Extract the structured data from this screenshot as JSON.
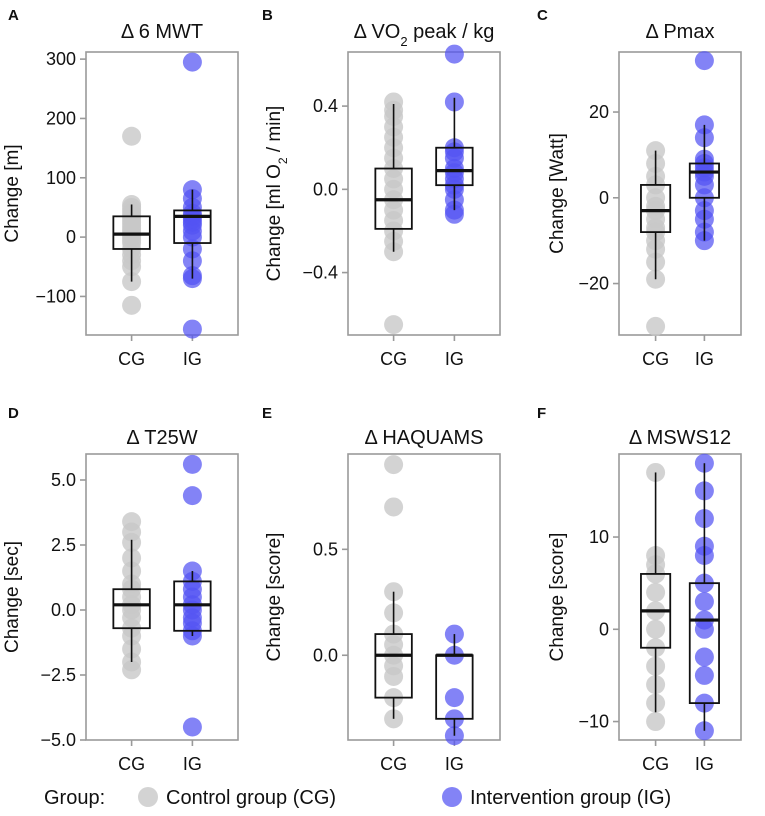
{
  "colors": {
    "control": "#c8c8c8",
    "intervention": "#5353f2",
    "frame": "#9a9a9a",
    "box": "#111111"
  },
  "legend": {
    "title": "Group:",
    "entries": [
      {
        "key": "CG",
        "label": "Control group (CG)"
      },
      {
        "key": "IG",
        "label": "Intervention group (IG)"
      }
    ]
  },
  "chart_data": [
    {
      "type": "box",
      "panel": "A",
      "title": "Δ 6 MWT",
      "ylabel": "Change [m]",
      "ylim": [
        -165,
        312
      ],
      "yticks": [
        -100,
        0,
        100,
        200,
        300
      ],
      "yticklabels": [
        "−100",
        "0",
        "100",
        "200",
        "300"
      ],
      "categories": [
        "CG",
        "IG"
      ],
      "boxes": {
        "CG": {
          "min": -75,
          "q1": -20,
          "median": 5,
          "q3": 35,
          "max": 55
        },
        "IG": {
          "min": -70,
          "q1": -10,
          "median": 35,
          "q3": 45,
          "max": 80
        }
      },
      "points": {
        "CG": [
          170,
          55,
          50,
          45,
          40,
          35,
          30,
          25,
          20,
          15,
          10,
          5,
          0,
          -5,
          -10,
          -20,
          -30,
          -40,
          -50,
          -75,
          -115
        ],
        "IG": [
          295,
          80,
          65,
          50,
          40,
          35,
          30,
          25,
          20,
          10,
          0,
          -20,
          -40,
          -65,
          -70,
          -155
        ]
      }
    },
    {
      "type": "box",
      "panel": "B",
      "title": "Δ VO₂ peak / kg",
      "ylabel": "Change [ml O₂ / min]",
      "ylim": [
        -0.7,
        0.66
      ],
      "yticks": [
        -0.4,
        0.0,
        0.4
      ],
      "yticklabels": [
        "−0.4",
        "0.0",
        "0.4"
      ],
      "categories": [
        "CG",
        "IG"
      ],
      "boxes": {
        "CG": {
          "min": -0.3,
          "q1": -0.19,
          "median": -0.05,
          "q3": 0.1,
          "max": 0.41
        },
        "IG": {
          "min": -0.1,
          "q1": 0.02,
          "median": 0.09,
          "q3": 0.2,
          "max": 0.44
        }
      },
      "points": {
        "CG": [
          0.42,
          0.38,
          0.35,
          0.3,
          0.25,
          0.2,
          0.15,
          0.1,
          0.05,
          0.0,
          -0.05,
          -0.1,
          -0.15,
          -0.2,
          -0.25,
          -0.3,
          -0.65
        ],
        "IG": [
          0.65,
          0.42,
          0.2,
          0.18,
          0.15,
          0.1,
          0.08,
          0.05,
          0.02,
          0.0,
          -0.05,
          -0.1,
          -0.12
        ]
      }
    },
    {
      "type": "box",
      "panel": "C",
      "title": "Δ Pmax",
      "ylabel": "Change [Watt]",
      "ylim": [
        -32,
        34
      ],
      "yticks": [
        -20,
        0,
        20
      ],
      "yticklabels": [
        "−20",
        "0",
        "20"
      ],
      "categories": [
        "CG",
        "IG"
      ],
      "boxes": {
        "CG": {
          "min": -19,
          "q1": -8,
          "median": -3,
          "q3": 3,
          "max": 11
        },
        "IG": {
          "min": -10,
          "q1": 0,
          "median": 6,
          "q3": 8,
          "max": 17
        }
      },
      "points": {
        "CG": [
          11,
          8,
          5,
          3,
          0,
          -2,
          -3,
          -5,
          -7,
          -8,
          -10,
          -12,
          -15,
          -19,
          -30
        ],
        "IG": [
          32,
          17,
          14,
          9,
          8,
          7,
          6,
          5,
          3,
          0,
          -3,
          -5,
          -8,
          -10
        ]
      }
    },
    {
      "type": "box",
      "panel": "D",
      "title": "Δ T25W",
      "ylabel": "Change [sec]",
      "ylim": [
        -5.0,
        6.0
      ],
      "yticks": [
        -5.0,
        -2.5,
        0.0,
        2.5,
        5.0
      ],
      "yticklabels": [
        "−5.0",
        "−2.5",
        "0.0",
        "2.5",
        "5.0"
      ],
      "categories": [
        "CG",
        "IG"
      ],
      "boxes": {
        "CG": {
          "min": -2.0,
          "q1": -0.7,
          "median": 0.2,
          "q3": 0.8,
          "max": 2.7
        },
        "IG": {
          "min": -1.0,
          "q1": -0.8,
          "median": 0.2,
          "q3": 1.1,
          "max": 1.5
        }
      },
      "points": {
        "CG": [
          3.4,
          3.0,
          2.6,
          2.0,
          1.5,
          1.0,
          0.8,
          0.5,
          0.2,
          0.0,
          -0.3,
          -0.7,
          -1.0,
          -1.5,
          -2.0,
          -2.3
        ],
        "IG": [
          5.6,
          4.4,
          1.5,
          1.1,
          0.8,
          0.5,
          0.2,
          0.0,
          -0.3,
          -0.5,
          -0.8,
          -1.0,
          -4.5
        ]
      }
    },
    {
      "type": "box",
      "panel": "E",
      "title": "Δ HAQUAMS",
      "ylabel": "Change [score]",
      "ylim": [
        -0.4,
        0.95
      ],
      "yticks": [
        0.0,
        0.5
      ],
      "yticklabels": [
        "0.0",
        "0.5"
      ],
      "categories": [
        "CG",
        "IG"
      ],
      "boxes": {
        "CG": {
          "min": -0.3,
          "q1": -0.2,
          "median": 0.0,
          "q3": 0.1,
          "max": 0.3
        },
        "IG": {
          "min": -0.38,
          "q1": -0.3,
          "median": 0.0,
          "q3": 0.0,
          "max": 0.1
        }
      },
      "points": {
        "CG": [
          0.9,
          0.7,
          0.3,
          0.2,
          0.1,
          0.05,
          0.0,
          -0.05,
          -0.1,
          -0.2,
          -0.3
        ],
        "IG": [
          0.1,
          0.0,
          -0.2,
          -0.3,
          -0.38
        ]
      }
    },
    {
      "type": "box",
      "panel": "F",
      "title": "Δ MSWS12",
      "ylabel": "Change [score]",
      "ylim": [
        -12,
        19
      ],
      "yticks": [
        -10,
        0,
        10
      ],
      "yticklabels": [
        "−10",
        "0",
        "10"
      ],
      "categories": [
        "CG",
        "IG"
      ],
      "boxes": {
        "CG": {
          "min": -9,
          "q1": -2,
          "median": 2,
          "q3": 6,
          "max": 17
        },
        "IG": {
          "min": -11,
          "q1": -8,
          "median": 1,
          "q3": 5,
          "max": 18
        }
      },
      "points": {
        "CG": [
          17,
          8,
          7,
          6,
          4,
          2,
          0,
          -2,
          -4,
          -6,
          -8,
          -10
        ],
        "IG": [
          18,
          15,
          12,
          9,
          8,
          5,
          3,
          1,
          0,
          -3,
          -5,
          -8,
          -11
        ]
      }
    }
  ]
}
